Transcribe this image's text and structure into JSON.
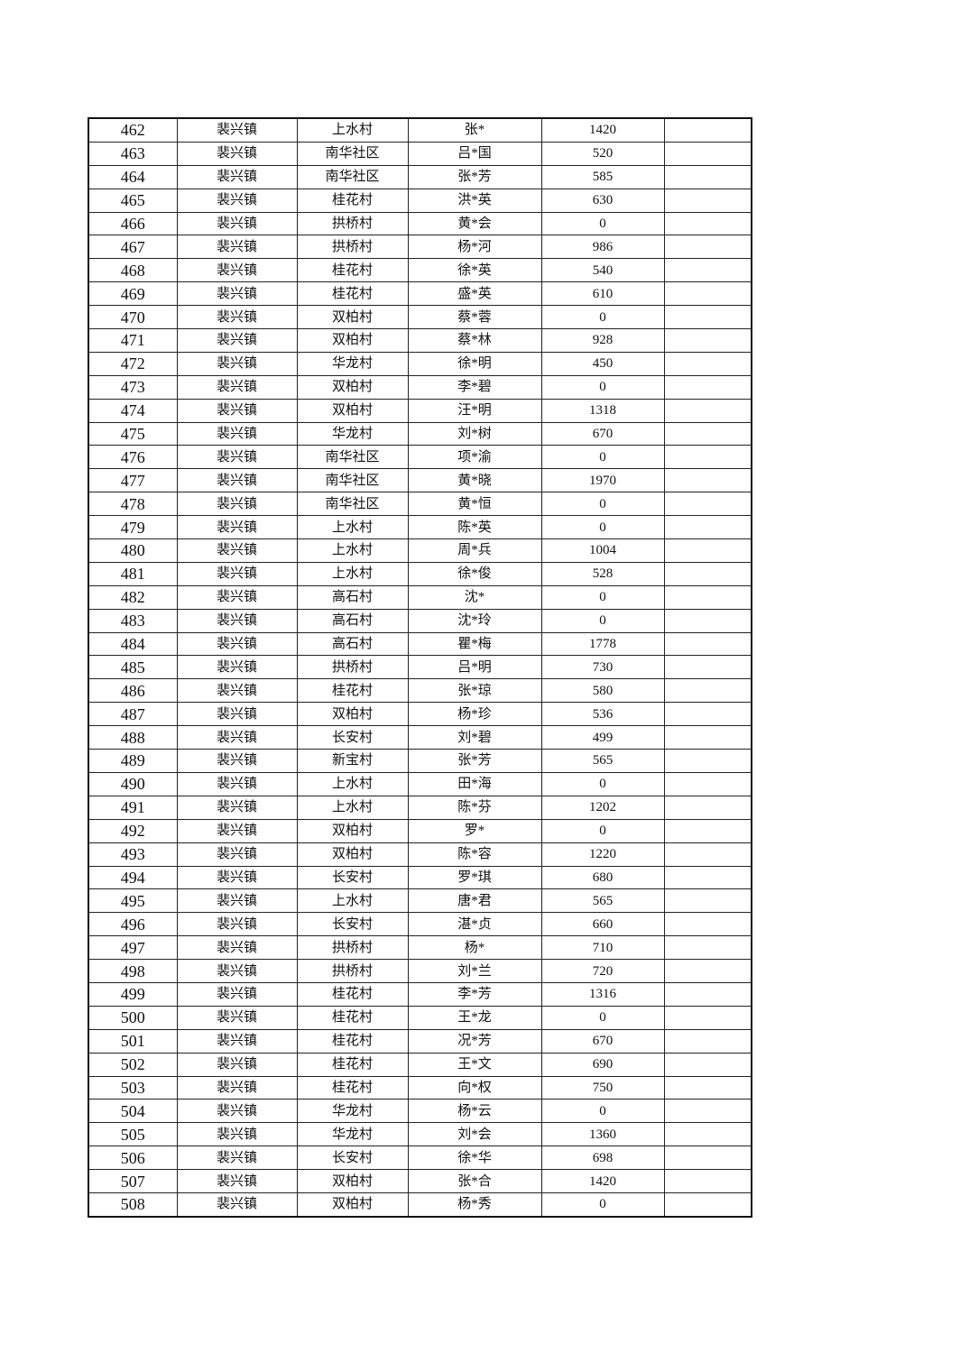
{
  "table": {
    "rows": [
      [
        "462",
        "裴兴镇",
        "上水村",
        "张*",
        "1420",
        ""
      ],
      [
        "463",
        "裴兴镇",
        "南华社区",
        "吕*国",
        "520",
        ""
      ],
      [
        "464",
        "裴兴镇",
        "南华社区",
        "张*芳",
        "585",
        ""
      ],
      [
        "465",
        "裴兴镇",
        "桂花村",
        "洪*英",
        "630",
        ""
      ],
      [
        "466",
        "裴兴镇",
        "拱桥村",
        "黄*会",
        "0",
        ""
      ],
      [
        "467",
        "裴兴镇",
        "拱桥村",
        "杨*河",
        "986",
        ""
      ],
      [
        "468",
        "裴兴镇",
        "桂花村",
        "徐*英",
        "540",
        ""
      ],
      [
        "469",
        "裴兴镇",
        "桂花村",
        "盛*英",
        "610",
        ""
      ],
      [
        "470",
        "裴兴镇",
        "双柏村",
        "蔡*蓉",
        "0",
        ""
      ],
      [
        "471",
        "裴兴镇",
        "双柏村",
        "蔡*林",
        "928",
        ""
      ],
      [
        "472",
        "裴兴镇",
        "华龙村",
        "徐*明",
        "450",
        ""
      ],
      [
        "473",
        "裴兴镇",
        "双柏村",
        "李*碧",
        "0",
        ""
      ],
      [
        "474",
        "裴兴镇",
        "双柏村",
        "汪*明",
        "1318",
        ""
      ],
      [
        "475",
        "裴兴镇",
        "华龙村",
        "刘*树",
        "670",
        ""
      ],
      [
        "476",
        "裴兴镇",
        "南华社区",
        "项*渝",
        "0",
        ""
      ],
      [
        "477",
        "裴兴镇",
        "南华社区",
        "黄*晓",
        "1970",
        ""
      ],
      [
        "478",
        "裴兴镇",
        "南华社区",
        "黄*恒",
        "0",
        ""
      ],
      [
        "479",
        "裴兴镇",
        "上水村",
        "陈*英",
        "0",
        ""
      ],
      [
        "480",
        "裴兴镇",
        "上水村",
        "周*兵",
        "1004",
        ""
      ],
      [
        "481",
        "裴兴镇",
        "上水村",
        "徐*俊",
        "528",
        ""
      ],
      [
        "482",
        "裴兴镇",
        "高石村",
        "沈*",
        "0",
        ""
      ],
      [
        "483",
        "裴兴镇",
        "高石村",
        "沈*玲",
        "0",
        ""
      ],
      [
        "484",
        "裴兴镇",
        "高石村",
        "瞿*梅",
        "1778",
        ""
      ],
      [
        "485",
        "裴兴镇",
        "拱桥村",
        "吕*明",
        "730",
        ""
      ],
      [
        "486",
        "裴兴镇",
        "桂花村",
        "张*琼",
        "580",
        ""
      ],
      [
        "487",
        "裴兴镇",
        "双柏村",
        "杨*珍",
        "536",
        ""
      ],
      [
        "488",
        "裴兴镇",
        "长安村",
        "刘*碧",
        "499",
        ""
      ],
      [
        "489",
        "裴兴镇",
        "新宝村",
        "张*芳",
        "565",
        ""
      ],
      [
        "490",
        "裴兴镇",
        "上水村",
        "田*海",
        "0",
        ""
      ],
      [
        "491",
        "裴兴镇",
        "上水村",
        "陈*芬",
        "1202",
        ""
      ],
      [
        "492",
        "裴兴镇",
        "双柏村",
        "罗*",
        "0",
        ""
      ],
      [
        "493",
        "裴兴镇",
        "双柏村",
        "陈*容",
        "1220",
        ""
      ],
      [
        "494",
        "裴兴镇",
        "长安村",
        "罗*琪",
        "680",
        ""
      ],
      [
        "495",
        "裴兴镇",
        "上水村",
        "唐*君",
        "565",
        ""
      ],
      [
        "496",
        "裴兴镇",
        "长安村",
        "湛*贞",
        "660",
        ""
      ],
      [
        "497",
        "裴兴镇",
        "拱桥村",
        "杨*",
        "710",
        ""
      ],
      [
        "498",
        "裴兴镇",
        "拱桥村",
        "刘*兰",
        "720",
        ""
      ],
      [
        "499",
        "裴兴镇",
        "桂花村",
        "李*芳",
        "1316",
        ""
      ],
      [
        "500",
        "裴兴镇",
        "桂花村",
        "王*龙",
        "0",
        ""
      ],
      [
        "501",
        "裴兴镇",
        "桂花村",
        "况*芳",
        "670",
        ""
      ],
      [
        "502",
        "裴兴镇",
        "桂花村",
        "王*文",
        "690",
        ""
      ],
      [
        "503",
        "裴兴镇",
        "桂花村",
        "向*权",
        "750",
        ""
      ],
      [
        "504",
        "裴兴镇",
        "华龙村",
        "杨*云",
        "0",
        ""
      ],
      [
        "505",
        "裴兴镇",
        "华龙村",
        "刘*会",
        "1360",
        ""
      ],
      [
        "506",
        "裴兴镇",
        "长安村",
        "徐*华",
        "698",
        ""
      ],
      [
        "507",
        "裴兴镇",
        "双柏村",
        "张*合",
        "1420",
        ""
      ],
      [
        "508",
        "裴兴镇",
        "双柏村",
        "杨*秀",
        "0",
        ""
      ]
    ]
  }
}
